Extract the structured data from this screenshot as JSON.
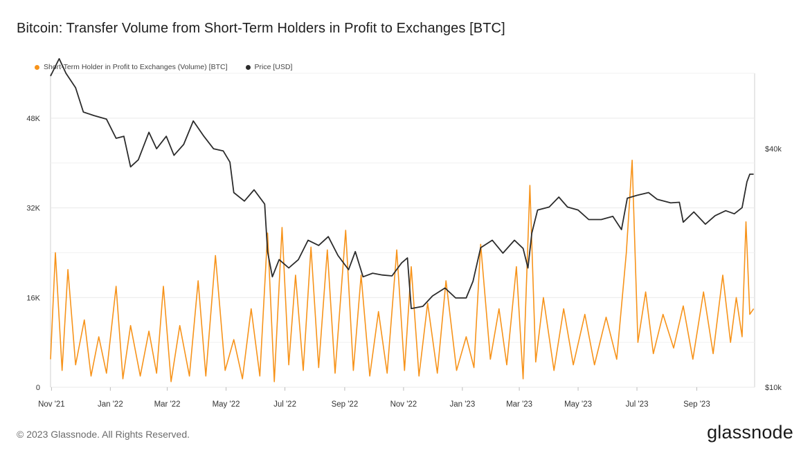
{
  "title": "Bitcoin: Transfer Volume from Short-Term Holders in Profit to Exchanges [BTC]",
  "legend": [
    {
      "label": "Short-Term Holder in Profit to Exchanges (Volume) [BTC]",
      "color": "#f7931a"
    },
    {
      "label": "Price [USD]",
      "color": "#2b2b2b"
    }
  ],
  "footer": "© 2023 Glassnode. All Rights Reserved.",
  "brand": "glassnode",
  "chart_data": {
    "type": "line",
    "x_ticks": [
      "Nov '21",
      "Jan '22",
      "Mar '22",
      "May '22",
      "Jul '22",
      "Sep '22",
      "Nov '22",
      "Jan '23",
      "Mar '23",
      "May '23",
      "Jul '23",
      "Sep '23"
    ],
    "y_left_ticks": [
      "0",
      "16K",
      "32K",
      "48K"
    ],
    "y_right_ticks": [
      "$10k",
      "$40k"
    ],
    "y_left_range": [
      0,
      56000
    ],
    "y_right_scale": "log",
    "y_right_range": [
      10000,
      62000
    ],
    "grid": true,
    "legend_position": "top-left",
    "series": [
      {
        "name": "Short-Term Holder in Profit to Exchanges (Volume) [BTC]",
        "axis": "left",
        "color": "#f7931a",
        "points": [
          [
            "2021-10-31",
            5000
          ],
          [
            "2021-11-05",
            24000
          ],
          [
            "2021-11-12",
            3000
          ],
          [
            "2021-11-18",
            21000
          ],
          [
            "2021-11-26",
            4000
          ],
          [
            "2021-12-05",
            12000
          ],
          [
            "2021-12-12",
            2000
          ],
          [
            "2021-12-20",
            9000
          ],
          [
            "2021-12-28",
            2500
          ],
          [
            "2022-01-07",
            18000
          ],
          [
            "2022-01-14",
            1500
          ],
          [
            "2022-01-22",
            11000
          ],
          [
            "2022-02-01",
            2000
          ],
          [
            "2022-02-10",
            10000
          ],
          [
            "2022-02-18",
            2500
          ],
          [
            "2022-02-25",
            18000
          ],
          [
            "2022-03-05",
            1000
          ],
          [
            "2022-03-14",
            11000
          ],
          [
            "2022-03-24",
            2000
          ],
          [
            "2022-04-02",
            19000
          ],
          [
            "2022-04-10",
            2000
          ],
          [
            "2022-04-20",
            23500
          ],
          [
            "2022-04-30",
            3000
          ],
          [
            "2022-05-09",
            8500
          ],
          [
            "2022-05-18",
            1500
          ],
          [
            "2022-05-27",
            14000
          ],
          [
            "2022-06-05",
            2000
          ],
          [
            "2022-06-13",
            27500
          ],
          [
            "2022-06-20",
            1000
          ],
          [
            "2022-06-28",
            28500
          ],
          [
            "2022-07-05",
            4000
          ],
          [
            "2022-07-12",
            20000
          ],
          [
            "2022-07-20",
            3000
          ],
          [
            "2022-07-28",
            25000
          ],
          [
            "2022-08-05",
            3500
          ],
          [
            "2022-08-14",
            24500
          ],
          [
            "2022-08-22",
            2500
          ],
          [
            "2022-09-02",
            28000
          ],
          [
            "2022-09-10",
            3000
          ],
          [
            "2022-09-18",
            20000
          ],
          [
            "2022-09-27",
            2000
          ],
          [
            "2022-10-06",
            13500
          ],
          [
            "2022-10-15",
            2500
          ],
          [
            "2022-10-25",
            24500
          ],
          [
            "2022-11-02",
            3000
          ],
          [
            "2022-11-09",
            21500
          ],
          [
            "2022-11-17",
            2000
          ],
          [
            "2022-11-26",
            15000
          ],
          [
            "2022-12-06",
            2500
          ],
          [
            "2022-12-15",
            19000
          ],
          [
            "2022-12-26",
            3000
          ],
          [
            "2023-01-05",
            9000
          ],
          [
            "2023-01-13",
            3500
          ],
          [
            "2023-01-20",
            25500
          ],
          [
            "2023-01-30",
            5000
          ],
          [
            "2023-02-08",
            14000
          ],
          [
            "2023-02-16",
            4000
          ],
          [
            "2023-02-26",
            21500
          ],
          [
            "2023-03-05",
            1500
          ],
          [
            "2023-03-12",
            36000
          ],
          [
            "2023-03-18",
            4500
          ],
          [
            "2023-03-26",
            16000
          ],
          [
            "2023-04-06",
            3000
          ],
          [
            "2023-04-16",
            14000
          ],
          [
            "2023-04-26",
            4000
          ],
          [
            "2023-05-08",
            13000
          ],
          [
            "2023-05-18",
            4000
          ],
          [
            "2023-05-30",
            12500
          ],
          [
            "2023-06-10",
            5000
          ],
          [
            "2023-06-20",
            24000
          ],
          [
            "2023-06-26",
            40500
          ],
          [
            "2023-07-02",
            8000
          ],
          [
            "2023-07-10",
            17000
          ],
          [
            "2023-07-18",
            6000
          ],
          [
            "2023-07-28",
            13000
          ],
          [
            "2023-08-08",
            7000
          ],
          [
            "2023-08-18",
            14500
          ],
          [
            "2023-08-28",
            5000
          ],
          [
            "2023-09-08",
            17000
          ],
          [
            "2023-09-18",
            6000
          ],
          [
            "2023-09-28",
            20000
          ],
          [
            "2023-10-06",
            8000
          ],
          [
            "2023-10-12",
            16000
          ],
          [
            "2023-10-18",
            9000
          ],
          [
            "2023-10-22",
            29500
          ],
          [
            "2023-10-26",
            13000
          ],
          [
            "2023-10-30",
            14000
          ]
        ]
      },
      {
        "name": "Price [USD]",
        "axis": "right",
        "color": "#2b2b2b",
        "points": [
          [
            "2021-10-31",
            61000
          ],
          [
            "2021-11-09",
            67500
          ],
          [
            "2021-11-16",
            62000
          ],
          [
            "2021-11-26",
            57000
          ],
          [
            "2021-12-04",
            49500
          ],
          [
            "2021-12-15",
            48500
          ],
          [
            "2021-12-28",
            47500
          ],
          [
            "2022-01-07",
            42500
          ],
          [
            "2022-01-15",
            43000
          ],
          [
            "2022-01-22",
            36000
          ],
          [
            "2022-01-30",
            37500
          ],
          [
            "2022-02-10",
            44000
          ],
          [
            "2022-02-18",
            40000
          ],
          [
            "2022-02-28",
            43000
          ],
          [
            "2022-03-08",
            38500
          ],
          [
            "2022-03-18",
            41000
          ],
          [
            "2022-03-28",
            47000
          ],
          [
            "2022-04-08",
            43000
          ],
          [
            "2022-04-18",
            40000
          ],
          [
            "2022-04-28",
            39500
          ],
          [
            "2022-05-05",
            37000
          ],
          [
            "2022-05-09",
            31000
          ],
          [
            "2022-05-20",
            29500
          ],
          [
            "2022-05-30",
            31500
          ],
          [
            "2022-06-10",
            29000
          ],
          [
            "2022-06-13",
            22000
          ],
          [
            "2022-06-18",
            19000
          ],
          [
            "2022-06-25",
            21000
          ],
          [
            "2022-07-05",
            20000
          ],
          [
            "2022-07-15",
            21000
          ],
          [
            "2022-07-25",
            23500
          ],
          [
            "2022-08-05",
            22800
          ],
          [
            "2022-08-15",
            24000
          ],
          [
            "2022-08-25",
            21500
          ],
          [
            "2022-09-05",
            19800
          ],
          [
            "2022-09-12",
            22000
          ],
          [
            "2022-09-20",
            19000
          ],
          [
            "2022-09-30",
            19400
          ],
          [
            "2022-10-10",
            19200
          ],
          [
            "2022-10-20",
            19100
          ],
          [
            "2022-10-30",
            20600
          ],
          [
            "2022-11-05",
            21200
          ],
          [
            "2022-11-09",
            15800
          ],
          [
            "2022-11-21",
            16000
          ],
          [
            "2022-12-01",
            17000
          ],
          [
            "2022-12-14",
            17800
          ],
          [
            "2022-12-25",
            16800
          ],
          [
            "2023-01-05",
            16800
          ],
          [
            "2023-01-12",
            18500
          ],
          [
            "2023-01-20",
            22500
          ],
          [
            "2023-02-01",
            23500
          ],
          [
            "2023-02-12",
            21800
          ],
          [
            "2023-02-24",
            23500
          ],
          [
            "2023-03-05",
            22400
          ],
          [
            "2023-03-10",
            20000
          ],
          [
            "2023-03-14",
            24500
          ],
          [
            "2023-03-20",
            28000
          ],
          [
            "2023-04-01",
            28500
          ],
          [
            "2023-04-11",
            30200
          ],
          [
            "2023-04-20",
            28500
          ],
          [
            "2023-05-01",
            28000
          ],
          [
            "2023-05-12",
            26500
          ],
          [
            "2023-05-25",
            26500
          ],
          [
            "2023-06-06",
            27000
          ],
          [
            "2023-06-15",
            25000
          ],
          [
            "2023-06-21",
            30000
          ],
          [
            "2023-07-01",
            30500
          ],
          [
            "2023-07-13",
            31000
          ],
          [
            "2023-07-22",
            29800
          ],
          [
            "2023-08-05",
            29200
          ],
          [
            "2023-08-14",
            29300
          ],
          [
            "2023-08-18",
            26100
          ],
          [
            "2023-08-29",
            27700
          ],
          [
            "2023-09-10",
            25800
          ],
          [
            "2023-09-20",
            27100
          ],
          [
            "2023-10-01",
            27900
          ],
          [
            "2023-10-10",
            27400
          ],
          [
            "2023-10-18",
            28400
          ],
          [
            "2023-10-23",
            33000
          ],
          [
            "2023-10-26",
            34500
          ],
          [
            "2023-10-30",
            34500
          ]
        ]
      }
    ]
  }
}
